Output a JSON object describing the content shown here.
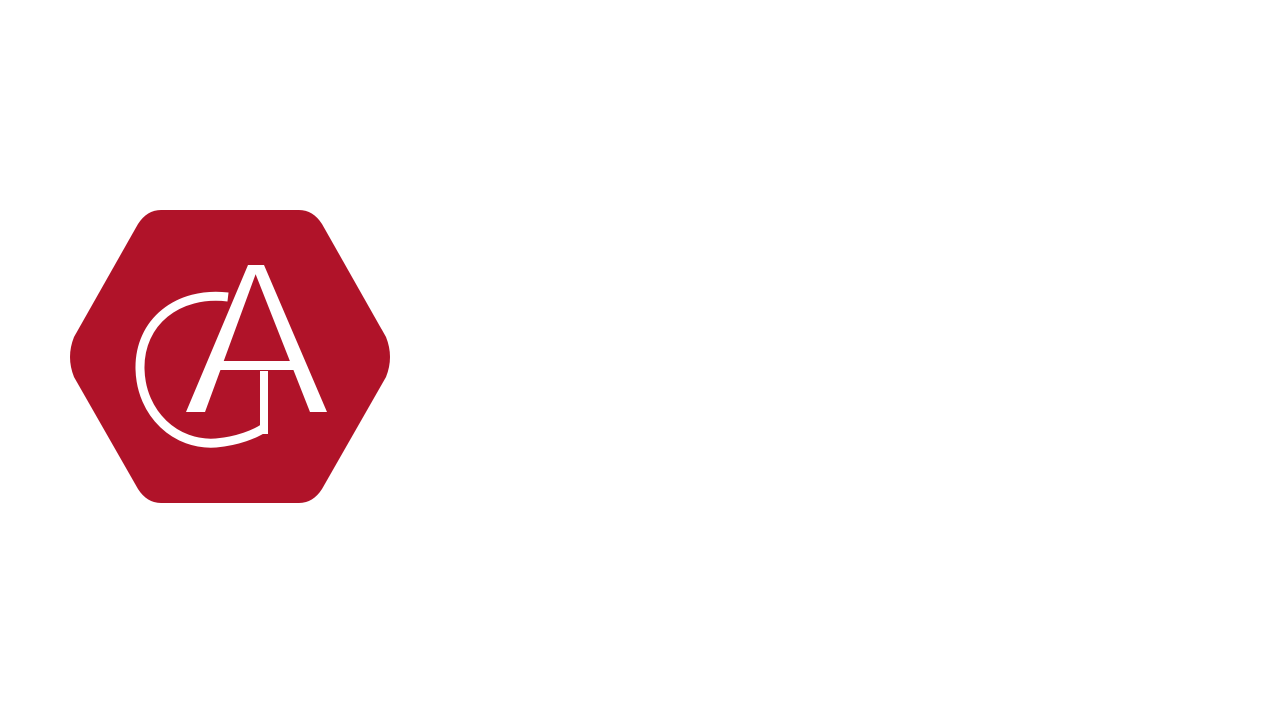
{
  "logo": {
    "icon": "ga-monogram-hexagon-logo",
    "lettering": "GA",
    "colors": {
      "badge": "#b01329",
      "monogram": "#ffffff"
    }
  },
  "background_color": "#ffffff"
}
